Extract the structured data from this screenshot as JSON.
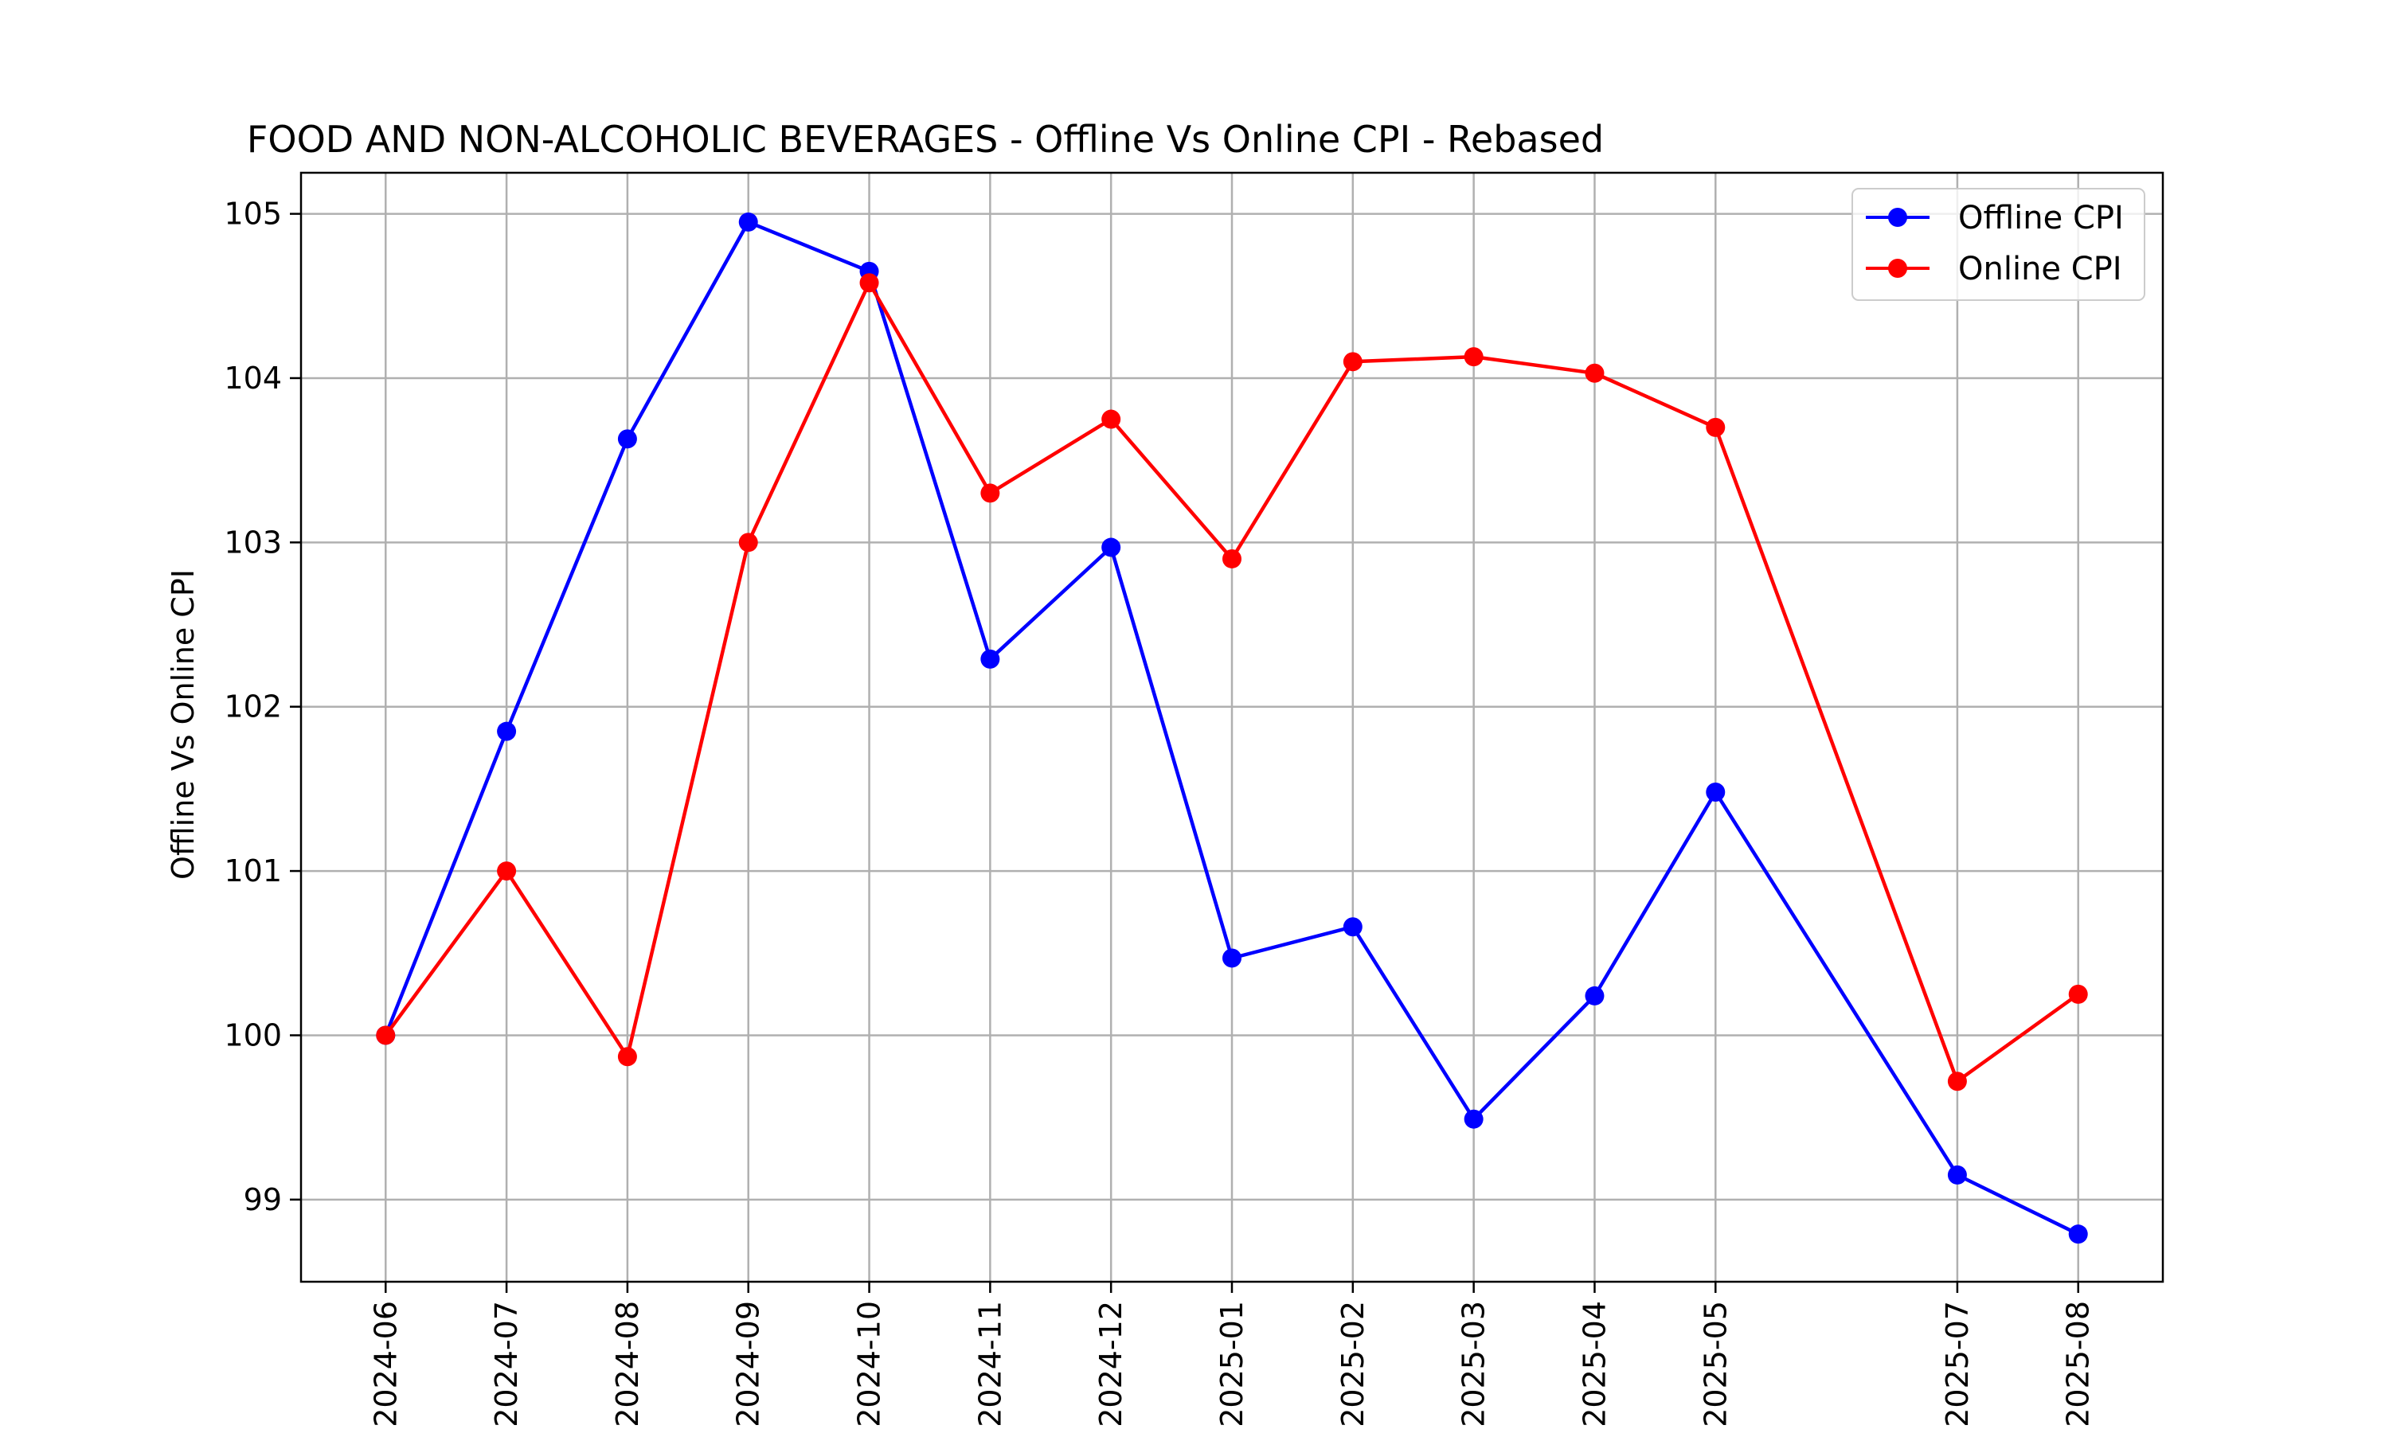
{
  "chart_data": {
    "type": "line",
    "title": "FOOD AND NON-ALCOHOLIC BEVERAGES - Offline Vs Online CPI - Rebased",
    "xlabel": "",
    "ylabel": "Offline Vs Online CPI",
    "x": [
      "2024-06",
      "2024-07",
      "2024-08",
      "2024-09",
      "2024-10",
      "2024-11",
      "2024-12",
      "2025-01",
      "2025-02",
      "2025-03",
      "2025-04",
      "2025-05",
      "2025-07",
      "2025-08"
    ],
    "yticks": [
      99,
      100,
      101,
      102,
      103,
      104,
      105
    ],
    "ylim": [
      98.5,
      105.25
    ],
    "grid": true,
    "legend": "top-right",
    "series": [
      {
        "name": "Offline CPI",
        "color": "#0000ff",
        "values": [
          100.0,
          101.85,
          103.63,
          104.95,
          104.65,
          102.29,
          102.97,
          100.47,
          100.66,
          99.49,
          100.24,
          101.48,
          99.15,
          98.79
        ]
      },
      {
        "name": "Online CPI",
        "color": "#ff0000",
        "values": [
          100.0,
          101.0,
          99.87,
          103.0,
          104.58,
          103.3,
          103.75,
          102.9,
          104.1,
          104.13,
          104.03,
          103.7,
          99.72,
          100.25
        ]
      }
    ]
  }
}
